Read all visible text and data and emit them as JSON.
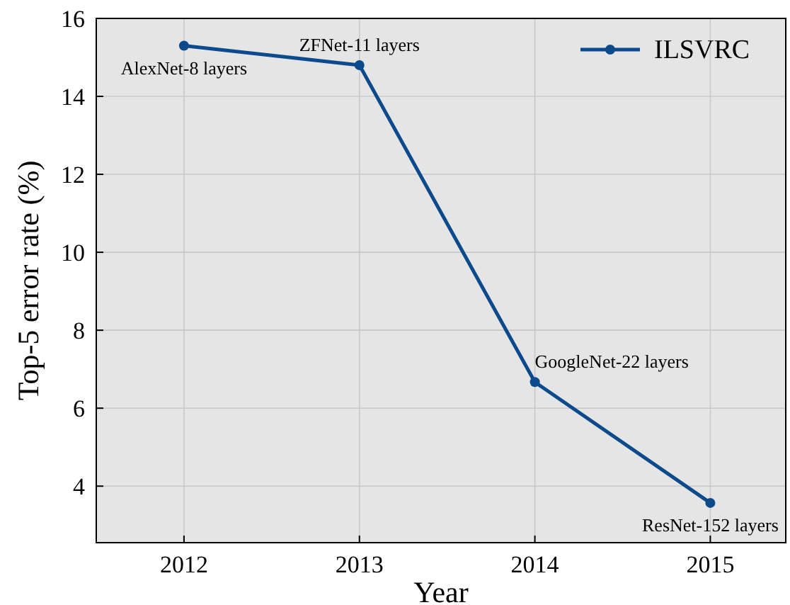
{
  "chart_data": {
    "type": "line",
    "xlabel": "Year",
    "ylabel": "Top-5 error rate (%)",
    "x": [
      2012,
      2013,
      2014,
      2015
    ],
    "series": [
      {
        "name": "ILSVRC",
        "color": "#0d4a8c",
        "values": [
          15.3,
          14.8,
          6.67,
          3.57
        ]
      }
    ],
    "xlim": [
      2011.5,
      2015.43
    ],
    "xticks": [
      2012,
      2013,
      2014,
      2015
    ],
    "ylim": [
      2.55,
      16
    ],
    "yticks": [
      4,
      6,
      8,
      10,
      12,
      14,
      16
    ],
    "grid": true,
    "legend": "top right",
    "marker": "circle",
    "line_style": "solid",
    "annotations": [
      {
        "text": "AlexNet-8 layers",
        "x": 2012,
        "y": 15.3
      },
      {
        "text": "ZFNet-11 layers",
        "x": 2013,
        "y": 14.8
      },
      {
        "text": "GoogleNet-22 layers",
        "x": 2014,
        "y": 6.67
      },
      {
        "text": "ResNet-152 layers",
        "x": 2015,
        "y": 3.57
      }
    ]
  }
}
